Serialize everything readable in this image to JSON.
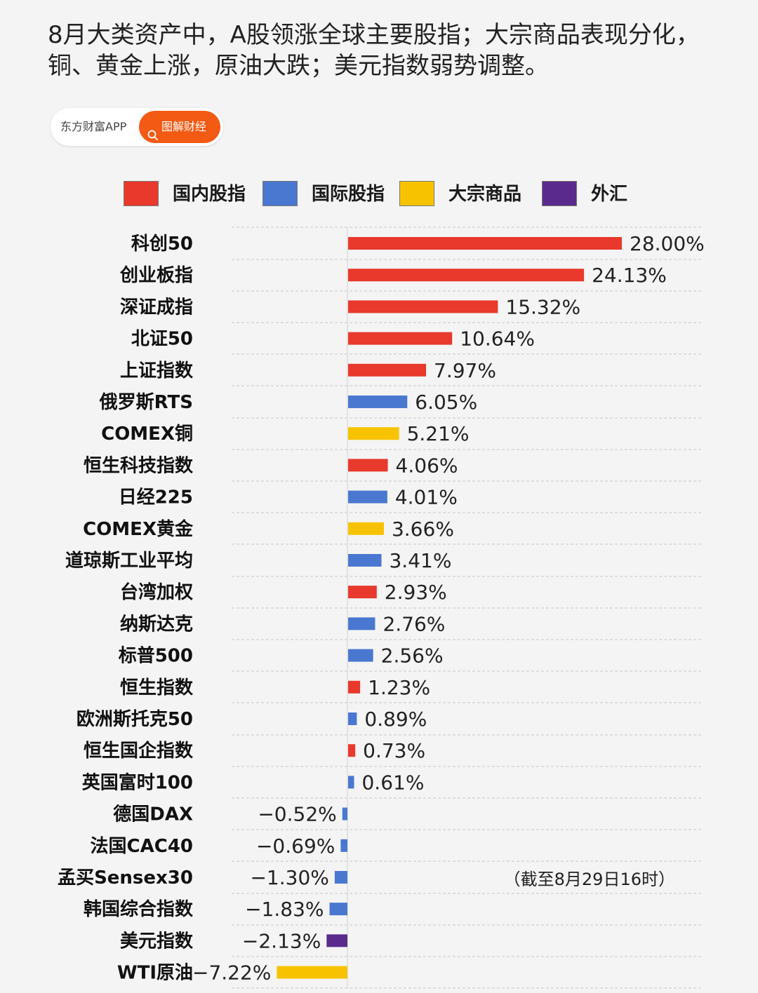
{
  "headline": {
    "line1": "8月大类资产中，A股领涨全球主要股指；大宗商品表现分化，",
    "line2": "铜、黄金上涨，原油大跌；美元指数弱势调整。"
  },
  "badge": {
    "source": "东方财富APP",
    "tag": "图解财经",
    "tag_icon": "search-icon",
    "tag_color": "#f35a14"
  },
  "legend": [
    {
      "label": "国内股指",
      "color": "#e8392c"
    },
    {
      "label": "国际股指",
      "color": "#4a78d0"
    },
    {
      "label": "大宗商品",
      "color": "#f7c300"
    },
    {
      "label": "外汇",
      "color": "#5a2a8c"
    }
  ],
  "note": "（截至8月29日16时）",
  "chart_data": {
    "type": "bar",
    "orientation": "horizontal",
    "unit": "%",
    "grid": "dashed horizontal",
    "legend_position": "top",
    "items": [
      {
        "label": "科创50",
        "value": 28.0,
        "value_label": "28.00%",
        "group": "国内股指"
      },
      {
        "label": "创业板指",
        "value": 24.13,
        "value_label": "24.13%",
        "group": "国内股指"
      },
      {
        "label": "深证成指",
        "value": 15.32,
        "value_label": "15.32%",
        "group": "国内股指"
      },
      {
        "label": "北证50",
        "value": 10.64,
        "value_label": "10.64%",
        "group": "国内股指"
      },
      {
        "label": "上证指数",
        "value": 7.97,
        "value_label": "7.97%",
        "group": "国内股指"
      },
      {
        "label": "俄罗斯RTS",
        "value": 6.05,
        "value_label": "6.05%",
        "group": "国际股指"
      },
      {
        "label": "COMEX铜",
        "value": 5.21,
        "value_label": "5.21%",
        "group": "大宗商品"
      },
      {
        "label": "恒生科技指数",
        "value": 4.06,
        "value_label": "4.06%",
        "group": "国内股指"
      },
      {
        "label": "日经225",
        "value": 4.01,
        "value_label": "4.01%",
        "group": "国际股指"
      },
      {
        "label": "COMEX黄金",
        "value": 3.66,
        "value_label": "3.66%",
        "group": "大宗商品"
      },
      {
        "label": "道琼斯工业平均",
        "value": 3.41,
        "value_label": "3.41%",
        "group": "国际股指"
      },
      {
        "label": "台湾加权",
        "value": 2.93,
        "value_label": "2.93%",
        "group": "国内股指"
      },
      {
        "label": "纳斯达克",
        "value": 2.76,
        "value_label": "2.76%",
        "group": "国际股指"
      },
      {
        "label": "标普500",
        "value": 2.56,
        "value_label": "2.56%",
        "group": "国际股指"
      },
      {
        "label": "恒生指数",
        "value": 1.23,
        "value_label": "1.23%",
        "group": "国内股指"
      },
      {
        "label": "欧洲斯托克50",
        "value": 0.89,
        "value_label": "0.89%",
        "group": "国际股指"
      },
      {
        "label": "恒生国企指数",
        "value": 0.73,
        "value_label": "0.73%",
        "group": "国内股指"
      },
      {
        "label": "英国富时100",
        "value": 0.61,
        "value_label": "0.61%",
        "group": "国际股指"
      },
      {
        "label": "德国DAX",
        "value": -0.52,
        "value_label": "−0.52%",
        "group": "国际股指"
      },
      {
        "label": "法国CAC40",
        "value": -0.69,
        "value_label": "−0.69%",
        "group": "国际股指"
      },
      {
        "label": "孟买Sensex30",
        "value": -1.3,
        "value_label": "−1.30%",
        "group": "国际股指"
      },
      {
        "label": "韩国综合指数",
        "value": -1.83,
        "value_label": "−1.83%",
        "group": "国际股指"
      },
      {
        "label": "美元指数",
        "value": -2.13,
        "value_label": "−2.13%",
        "group": "外汇"
      },
      {
        "label": "WTI原油",
        "value": -7.22,
        "value_label": "−7.22%",
        "group": "大宗商品"
      }
    ]
  }
}
